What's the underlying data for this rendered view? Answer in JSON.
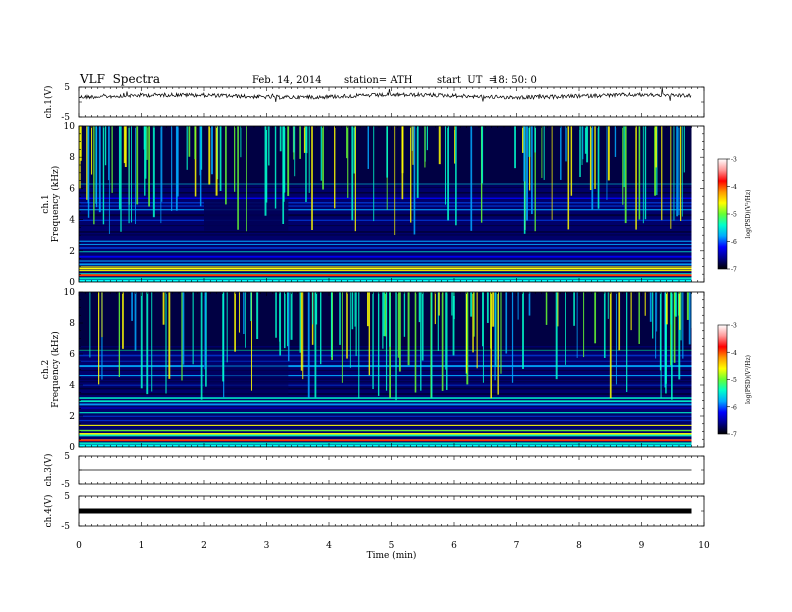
{
  "header": {
    "title": "VLF  Spectra",
    "date": "Feb. 14, 2014",
    "station": "station= ATH",
    "start_label": "start  UT  =",
    "start_value": "18: 50: 0"
  },
  "colors": {
    "spec_background": "#00006a",
    "colorbar": [
      "#000000",
      "#00008b",
      "#0000ff",
      "#00aaff",
      "#00ffcc",
      "#66ff33",
      "#ffff00",
      "#ff9900",
      "#ff0000",
      "#ff9999",
      "#ffffff"
    ]
  },
  "chart_data": [
    {
      "type": "line",
      "panel": "ch1",
      "ylabel": "ch.1(V)",
      "ylim": [
        -5,
        5
      ],
      "yticks": [
        "5",
        "-5"
      ],
      "series": [
        {
          "x": [
            0,
            9.8
          ],
          "y": [
            2,
            2
          ]
        }
      ]
    },
    {
      "type": "heatmap",
      "panel": "ch1",
      "ylabel": "ch.1\nFrequency  (kHz)",
      "ylim": [
        0,
        10
      ],
      "yticks": [
        "0",
        "2",
        "4",
        "6",
        "8",
        "10"
      ],
      "xlim": [
        0,
        10
      ],
      "colorbar": {
        "label": "log(PSD)(V²/Hz)",
        "range": [
          -7,
          -3
        ],
        "ticks": [
          "-3",
          "-4",
          "-5",
          "-6",
          "-7"
        ]
      }
    },
    {
      "type": "heatmap",
      "panel": "ch2",
      "ylabel": "ch.2\nFrequency  (kHz)",
      "ylim": [
        0,
        10
      ],
      "yticks": [
        "0",
        "2",
        "4",
        "6",
        "8",
        "10"
      ],
      "xlim": [
        0,
        10
      ],
      "colorbar": {
        "label": "log(PSD)(V²/Hz)",
        "range": [
          -7,
          -3
        ],
        "ticks": [
          "-3",
          "-4",
          "-5",
          "-6",
          "-7"
        ]
      }
    },
    {
      "type": "line",
      "panel": "ch3",
      "ylabel": "ch.3(V)",
      "ylim": [
        -5,
        5
      ],
      "yticks": [
        "5",
        "-5"
      ],
      "series": [
        {
          "x": [
            0,
            9.8
          ],
          "y": [
            0,
            0
          ]
        }
      ]
    },
    {
      "type": "line",
      "panel": "ch4",
      "ylabel": "ch.4(V)",
      "ylim": [
        -5,
        5
      ],
      "yticks": [
        "5",
        "-5"
      ],
      "series": [
        {
          "x": [
            0,
            9.8
          ],
          "y": [
            0,
            0
          ]
        }
      ]
    }
  ],
  "xaxis": {
    "label": "Time  (min)",
    "ticks": [
      "0",
      "1",
      "2",
      "3",
      "4",
      "5",
      "6",
      "7",
      "8",
      "9",
      "10"
    ],
    "xlim": [
      0,
      10
    ]
  }
}
